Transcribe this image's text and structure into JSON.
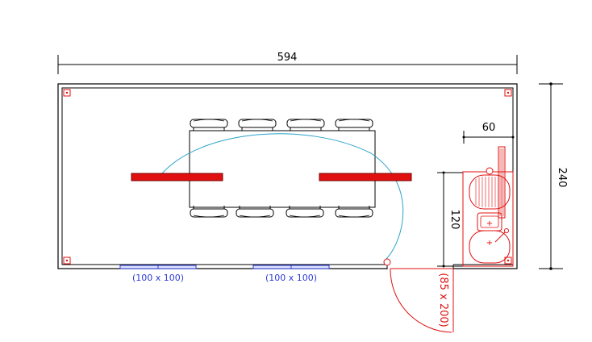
{
  "dimensions": {
    "width_label": "594",
    "height_label": "240",
    "kitchen_width_label": "60",
    "kitchen_height_label": "120"
  },
  "windows": [
    {
      "label": "(100 x 100)"
    },
    {
      "label": "(100 x 100)"
    }
  ],
  "door": {
    "label": "(85 x 200)"
  },
  "colors": {
    "wall": "#000000",
    "window": "#2a3ad8",
    "door": "#e01010",
    "table_bar": "#e01010",
    "swing_arc": "#2aa3c8",
    "kitchen": "#e01010"
  },
  "furniture": {
    "chairs_top": 4,
    "chairs_bottom": 4
  }
}
